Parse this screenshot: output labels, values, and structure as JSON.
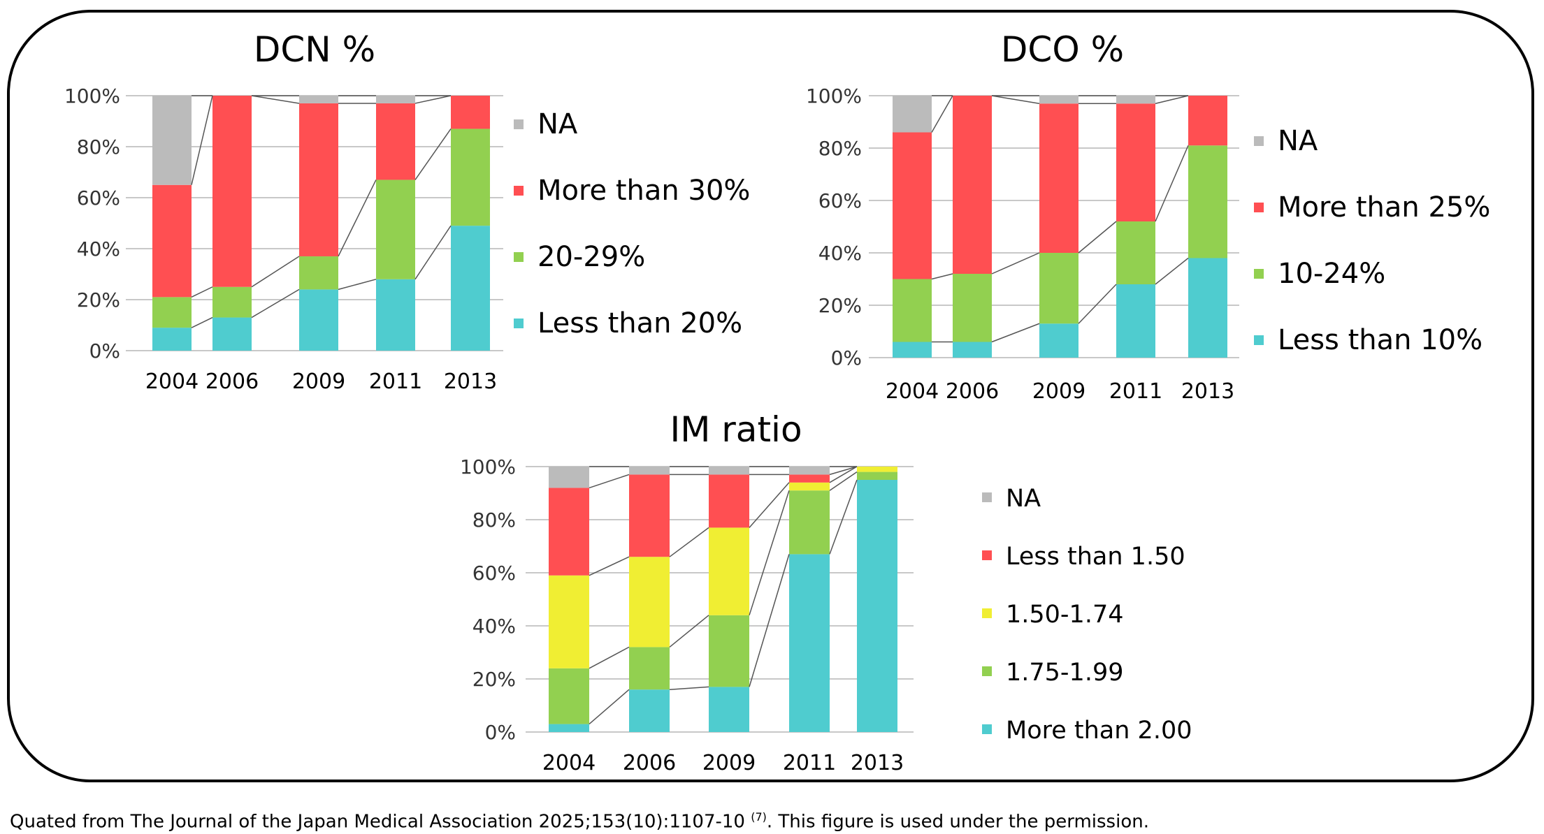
{
  "colors": {
    "NA": "#bbbbbb",
    "red": "#ff4f52",
    "green": "#92d050",
    "yellow": "#f0ee33",
    "cyan": "#4fcccf",
    "grid": "#c8c8c8",
    "connector": "#555555"
  },
  "caption": {
    "text": "Quated from The Journal of the Japan Medical Association 2025;153(10):1107-10 ",
    "ref": "(7)",
    "suffix": ". This figure is used under the permission."
  },
  "chart_data": [
    {
      "type": "bar",
      "stacked": true,
      "title": "DCN %",
      "categories": [
        "2004",
        "2006",
        "2009",
        "2011",
        "2013"
      ],
      "yticks": [
        "0%",
        "20%",
        "40%",
        "60%",
        "80%",
        "100%"
      ],
      "ylim": [
        0,
        100
      ],
      "grid": true,
      "legend": "right",
      "series": [
        {
          "name": "Less than 20%",
          "color": "cyan",
          "values": [
            9,
            13,
            24,
            28,
            49
          ]
        },
        {
          "name": "20-29%",
          "color": "green",
          "values": [
            12,
            12,
            13,
            39,
            38
          ]
        },
        {
          "name": "More than 30%",
          "color": "red",
          "values": [
            44,
            75,
            60,
            30,
            13
          ]
        },
        {
          "name": "NA",
          "color": "NA",
          "values": [
            35,
            0,
            3,
            3,
            0
          ]
        }
      ]
    },
    {
      "type": "bar",
      "stacked": true,
      "title": "DCO %",
      "categories": [
        "2004",
        "2006",
        "2009",
        "2011",
        "2013"
      ],
      "yticks": [
        "0%",
        "20%",
        "40%",
        "60%",
        "80%",
        "100%"
      ],
      "ylim": [
        0,
        100
      ],
      "grid": true,
      "legend": "right",
      "series": [
        {
          "name": "Less than 10%",
          "color": "cyan",
          "values": [
            6,
            6,
            13,
            28,
            38
          ]
        },
        {
          "name": "10-24%",
          "color": "green",
          "values": [
            24,
            26,
            27,
            24,
            43
          ]
        },
        {
          "name": "More than 25%",
          "color": "red",
          "values": [
            56,
            68,
            57,
            45,
            19
          ]
        },
        {
          "name": "NA",
          "color": "NA",
          "values": [
            14,
            0,
            3,
            3,
            0
          ]
        }
      ]
    },
    {
      "type": "bar",
      "stacked": true,
      "title": "IM ratio",
      "categories": [
        "2004",
        "2006",
        "2009",
        "2011",
        "2013"
      ],
      "yticks": [
        "0%",
        "20%",
        "40%",
        "60%",
        "80%",
        "100%"
      ],
      "ylim": [
        0,
        100
      ],
      "grid": true,
      "legend": "right",
      "series": [
        {
          "name": "More than 2.00",
          "color": "cyan",
          "values": [
            3,
            16,
            17,
            67,
            95
          ]
        },
        {
          "name": "1.75-1.99",
          "color": "green",
          "values": [
            21,
            16,
            27,
            24,
            3
          ]
        },
        {
          "name": "1.50-1.74",
          "color": "yellow",
          "values": [
            35,
            34,
            33,
            3,
            2
          ]
        },
        {
          "name": "Less than 1.50",
          "color": "red",
          "values": [
            33,
            31,
            20,
            3,
            0
          ]
        },
        {
          "name": "NA",
          "color": "NA",
          "values": [
            8,
            3,
            3,
            3,
            0
          ]
        }
      ]
    }
  ]
}
